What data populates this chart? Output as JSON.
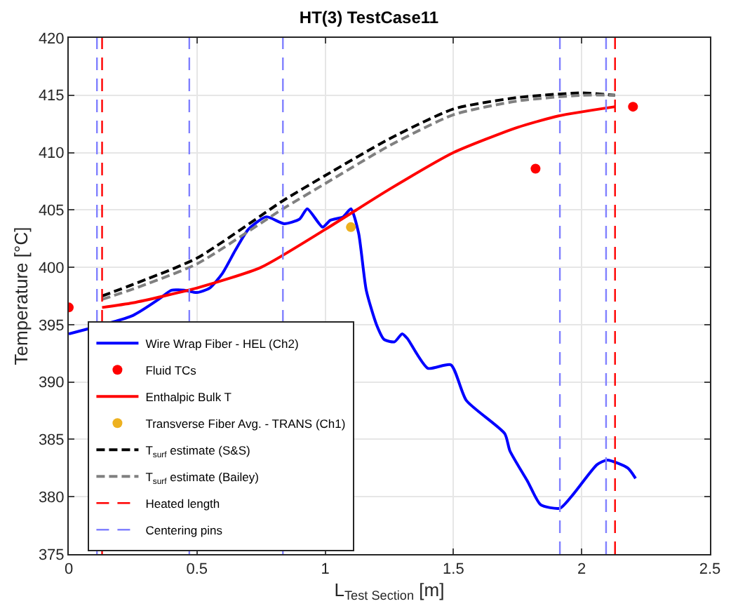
{
  "chart_data": {
    "type": "line",
    "title": "HT(3) TestCase11",
    "xlabel": "L$_{Test Section}$ [m]",
    "ylabel": "Temperature [°C]",
    "xlim": [
      0,
      2.5
    ],
    "xticks": [
      0,
      0.5,
      1,
      1.5,
      2,
      2.5
    ],
    "ylim": [
      375,
      420
    ],
    "yticks": [
      375,
      380,
      385,
      390,
      395,
      400,
      405,
      410,
      415,
      420
    ],
    "grid": true,
    "legend": "bottom left",
    "series": [
      {
        "name": "Wire Wrap Fiber - HEL (Ch2)",
        "color": "#0000ff",
        "line_style": "solid",
        "x": [
          0,
          0.25,
          0.35,
          0.4,
          0.45,
          0.5,
          0.55,
          0.6,
          0.65,
          0.7,
          0.77,
          0.84,
          0.9,
          0.93,
          0.99,
          1.02,
          1.07,
          1.1,
          1.13,
          1.16,
          1.2,
          1.23,
          1.27,
          1.3,
          1.32,
          1.4,
          1.49,
          1.55,
          1.7,
          1.72,
          1.79,
          1.84,
          1.915,
          1.97,
          2.06,
          2.1,
          2.18,
          2.21
        ],
        "values": [
          394.2,
          395.8,
          397.2,
          398,
          398,
          397.8,
          398.2,
          399.5,
          401.5,
          403.3,
          404.4,
          403.8,
          404.2,
          405.1,
          403.5,
          404.1,
          404.4,
          405.1,
          403,
          398,
          395,
          393.7,
          393.5,
          394.2,
          393.8,
          391.2,
          391.5,
          388.4,
          385.5,
          384,
          381.3,
          379.3,
          379,
          380.3,
          382.8,
          383.2,
          382.5,
          381.6
        ]
      },
      {
        "name": "Fluid TCs",
        "type": "scatter",
        "color": "#ff0000",
        "x": [
          0,
          1.82,
          2.2
        ],
        "values": [
          396.5,
          408.6,
          414
        ]
      },
      {
        "name": "Enthalpic Bulk T",
        "color": "#ff0000",
        "line_style": "solid",
        "x": [
          0.13,
          0.13,
          0.25,
          0.5,
          0.75,
          1,
          1.25,
          1.5,
          1.75,
          1.91,
          2.13
        ],
        "values": [
          396.5,
          396.5,
          396.9,
          398.2,
          400,
          403.3,
          406.8,
          410,
          412.2,
          413.2,
          414
        ]
      },
      {
        "name": "Transverse Fiber Avg. - TRANS (Ch1)",
        "type": "scatter",
        "color": "#edb120",
        "x": [
          1.1
        ],
        "values": [
          403.5
        ]
      },
      {
        "name": "T$_{surf}$ estimate (S&S)",
        "color": "#000000",
        "line_style": "dashed",
        "x": [
          0.13,
          0.25,
          0.5,
          0.835,
          1,
          1.25,
          1.5,
          1.75,
          2,
          2.13
        ],
        "values": [
          397.5,
          398.5,
          400.8,
          405.8,
          408,
          411.2,
          413.8,
          414.8,
          415.2,
          415
        ]
      },
      {
        "name": "T$_{surf}$ estimate (Bailey)",
        "color": "#808080",
        "line_style": "dashed",
        "x": [
          0.13,
          0.25,
          0.5,
          0.835,
          1,
          1.25,
          1.5,
          1.75,
          2,
          2.13
        ],
        "values": [
          397.2,
          398.1,
          400.3,
          405.1,
          407.3,
          410.6,
          413.3,
          414.5,
          415,
          415
        ]
      }
    ],
    "ref_lines": [
      {
        "axis": "x",
        "value": 0.13,
        "label": "Heated length",
        "color": "#ff0000",
        "line_style": "dashed"
      },
      {
        "axis": "x",
        "value": 2.13,
        "color": "#ff0000",
        "line_style": "dashed"
      },
      {
        "axis": "x",
        "value": 0.11,
        "label": "Centering pins",
        "color": "#8080ff",
        "line_style": "dashed"
      },
      {
        "axis": "x",
        "value": 0.47,
        "color": "#8080ff",
        "line_style": "dashed"
      },
      {
        "axis": "x",
        "value": 0.835,
        "color": "#8080ff",
        "line_style": "dashed"
      },
      {
        "axis": "x",
        "value": 1.915,
        "color": "#8080ff",
        "line_style": "dashed"
      },
      {
        "axis": "x",
        "value": 2.095,
        "color": "#8080ff",
        "line_style": "dashed"
      }
    ]
  }
}
